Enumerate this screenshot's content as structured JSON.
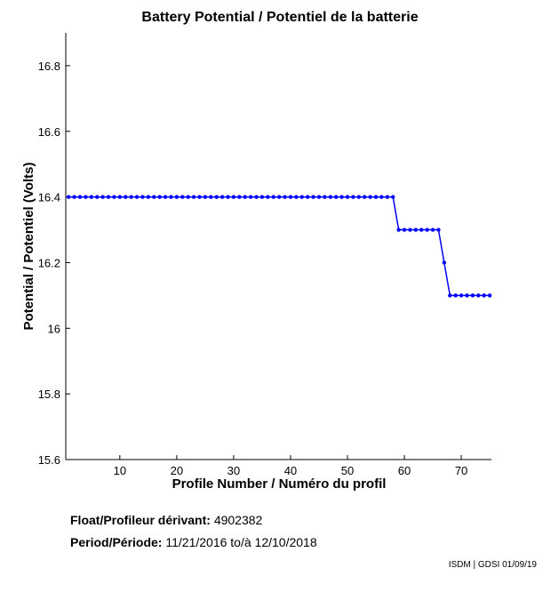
{
  "chart_data": {
    "type": "line",
    "title": "Battery Potential / Potentiel de la batterie",
    "xlabel": "Profile Number / Numéro du profil",
    "ylabel": "Potential / Potentiel (Volts)",
    "xlim": [
      0.5,
      75.3
    ],
    "ylim": [
      15.6,
      16.9
    ],
    "xticks": [
      10,
      20,
      30,
      40,
      50,
      60,
      70
    ],
    "yticks": [
      15.6,
      15.8,
      16,
      16.2,
      16.4,
      16.6,
      16.8
    ],
    "ytick_labels": [
      "15.6",
      "15.8",
      "16",
      "16.2",
      "16.4",
      "16.6",
      "16.8"
    ],
    "grid": false,
    "series_color": "#0000ff",
    "series": [
      {
        "x": [
          1,
          2,
          3,
          4,
          5,
          6,
          7,
          8,
          9,
          10,
          11,
          12,
          13,
          14,
          15,
          16,
          17,
          18,
          19,
          20,
          21,
          22,
          23,
          24,
          25,
          26,
          27,
          28,
          29,
          30,
          31,
          32,
          33,
          34,
          35,
          36,
          37,
          38,
          39,
          40,
          41,
          42,
          43,
          44,
          45,
          46,
          47,
          48,
          49,
          50,
          51,
          52,
          53,
          54,
          55,
          56,
          57,
          58,
          59,
          60,
          61,
          62,
          63,
          64,
          65,
          66,
          67,
          68,
          69,
          70,
          71,
          72,
          73,
          74,
          75
        ],
        "y": [
          16.4,
          16.4,
          16.4,
          16.4,
          16.4,
          16.4,
          16.4,
          16.4,
          16.4,
          16.4,
          16.4,
          16.4,
          16.4,
          16.4,
          16.4,
          16.4,
          16.4,
          16.4,
          16.4,
          16.4,
          16.4,
          16.4,
          16.4,
          16.4,
          16.4,
          16.4,
          16.4,
          16.4,
          16.4,
          16.4,
          16.4,
          16.4,
          16.4,
          16.4,
          16.4,
          16.4,
          16.4,
          16.4,
          16.4,
          16.4,
          16.4,
          16.4,
          16.4,
          16.4,
          16.4,
          16.4,
          16.4,
          16.4,
          16.4,
          16.4,
          16.4,
          16.4,
          16.4,
          16.4,
          16.4,
          16.4,
          16.4,
          16.4,
          16.3,
          16.3,
          16.3,
          16.3,
          16.3,
          16.3,
          16.3,
          16.3,
          16.2,
          16.1,
          16.1,
          16.1,
          16.1,
          16.1,
          16.1,
          16.1,
          16.1
        ]
      }
    ]
  },
  "info": {
    "float_label": "Float/Profileur dérivant:",
    "float_value": "4902382",
    "period_label": "Period/Période:",
    "period_start": "11/21/2016",
    "period_sep": "to/à",
    "period_end": "12/10/2018"
  },
  "credit": "ISDM | GDSI 01/09/19"
}
